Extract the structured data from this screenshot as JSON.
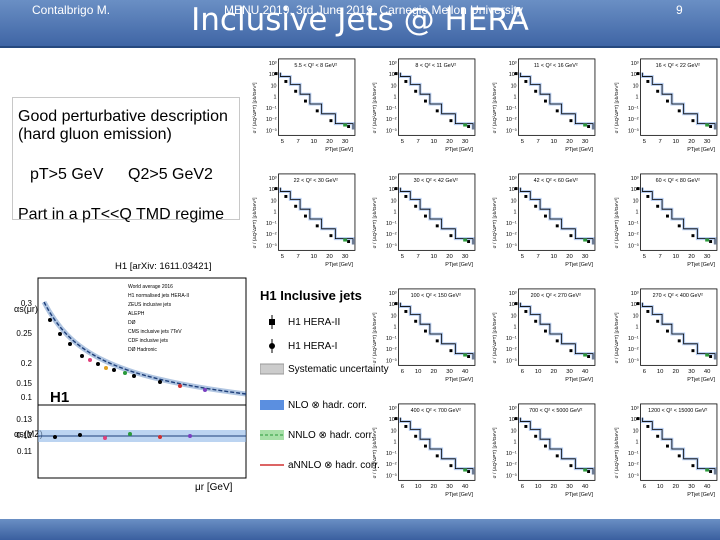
{
  "slide": {
    "title": "Inclusive Jets @ HERA",
    "text_lines": {
      "line1": "Good perturbative description",
      "line2": "(hard gluon emission)",
      "pt_cut": "pT>5 GeV",
      "q2_cut": "Q2>5 GeV2",
      "tmd": "Part in a pT<<Q TMD regime"
    },
    "citation": "H1 [arXiv: 1611.03421]"
  },
  "footer": {
    "author": "Contalbrigo M.",
    "event": "MENU 2019, 3rd June 2019, Carnegie Mellon University",
    "page": "9"
  },
  "panels": [
    {
      "label": "5.5 < Q² < 8 GeV²"
    },
    {
      "label": "8 < Q² < 11 GeV²"
    },
    {
      "label": "11 < Q² < 16 GeV²"
    },
    {
      "label": "16 < Q² < 22 GeV²"
    },
    {
      "label": "22 < Q² < 30 GeV²"
    },
    {
      "label": "30 < Q² < 42 GeV²"
    },
    {
      "label": "42 < Q² < 60 GeV²"
    },
    {
      "label": "60 < Q² < 80 GeV²"
    },
    {
      "label": "100 < Q² < 150 GeV²"
    },
    {
      "label": "200 < Q² < 270 GeV²"
    },
    {
      "label": "270 < Q² < 400 GeV²"
    },
    {
      "label": "400 < Q² < 700 GeV²"
    },
    {
      "label": "700 < Q² < 5000 GeV²"
    },
    {
      "label": "1200 < Q² < 15000 GeV²"
    }
  ],
  "axis": {
    "ylabel": "σ / (ΔQ²ΔPT) [pb/GeV³]",
    "xlabel": "PTjet [GeV]",
    "xticks_top": [
      "5",
      "7",
      "10",
      "20",
      "30"
    ],
    "xticks_bottom": [
      "6",
      "10",
      "20",
      "30",
      "40"
    ],
    "yticks": [
      "10³",
      "10²",
      "10",
      "1",
      "10⁻¹",
      "10⁻²",
      "10⁻³"
    ]
  },
  "legend": {
    "title": "H1 Inclusive jets",
    "h1_hera2": "H1 HERA-II",
    "h1_hera1": "H1 HERA-I",
    "systematic": "Systematic uncertainty",
    "nlo": "NLO ⊗ hadr. corr.",
    "nnlo": "NNLO ⊗ hadr. corr.",
    "annlo": "aNNLO ⊗ hadr. corr."
  },
  "alphas_plot": {
    "ylabel_top": "αs(μr)",
    "ylabel_bottom": "αs(MZ)",
    "xlabel": "μr [GeV]",
    "h1_label": "H1",
    "yticks_top": [
      "0.3",
      "0.25",
      "0.2",
      "0.15",
      "0.1"
    ],
    "yticks_bottom": [
      "0.13",
      "0.12",
      "0.11"
    ],
    "legend": [
      "World average 2016",
      "H1 normalised jets HERA-II",
      "ZEUS inclusive jets",
      "ALEPH",
      "DØ",
      "CMS inclusive jets 7TeV",
      "CDF inclusive jets",
      "DØ Hadronic"
    ]
  }
}
